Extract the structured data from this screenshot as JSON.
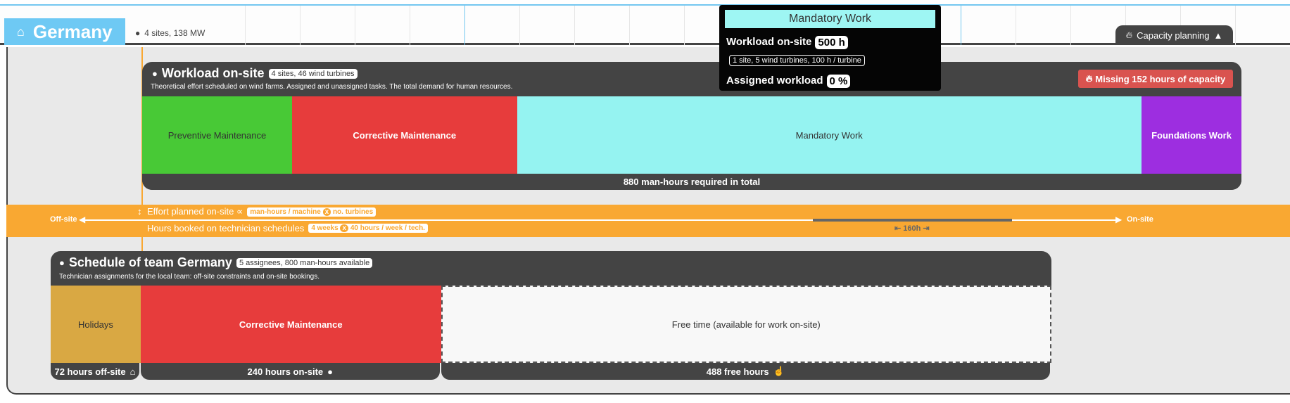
{
  "header": {
    "country": "Germany",
    "sites_summary": "4 sites, 138 MW",
    "capacity_tab": "Capacity planning"
  },
  "workload": {
    "title": "Workload on-site",
    "badge": "4 sites, 46 wind turbines",
    "subtitle": "Theoretical effort scheduled on wind farms. Assigned and unassigned tasks. The total demand for human resources.",
    "alert": "Missing 152 hours of capacity",
    "segments": [
      {
        "label": "Preventive Maintenance",
        "hours": 120,
        "color": "#48c936"
      },
      {
        "label": "Corrective Maintenance",
        "hours": 180,
        "color": "#e73c3c"
      },
      {
        "label": "Mandatory Work",
        "hours": 500,
        "color": "#95f3f1"
      },
      {
        "label": "Foundations Work",
        "hours": 80,
        "color": "#9d2ee0"
      }
    ],
    "total": "880 man-hours required in total"
  },
  "band": {
    "offsite": "Off-site",
    "onsite": "On-site",
    "effort_label": "Effort planned on-site ∝",
    "effort_a": "man-hours / machine",
    "effort_b": "no. turbines",
    "hours_label": "Hours booked on technician schedules",
    "hours_a": "4 weeks",
    "hours_b": "40 hours / week / tech.",
    "times": "x",
    "gap": "⇤ 160h ⇥"
  },
  "schedule": {
    "title": "Schedule of team Germany",
    "badge": "5 assignees, 800 man-hours available",
    "subtitle": "Technician assignments for the local team: off-site constraints and on-site bookings.",
    "segments": [
      {
        "label": "Holidays",
        "hours": 72,
        "color": "#d9a843",
        "footer": "72 hours off-site"
      },
      {
        "label": "Corrective Maintenance",
        "hours": 240,
        "color": "#e73c3c",
        "footer": "240 hours on-site"
      },
      {
        "label": "Free time (available for work on-site)",
        "hours": 488,
        "color": "#f8f8f8",
        "footer": "488 free hours"
      }
    ]
  },
  "tooltip": {
    "title": "Mandatory Work",
    "workload_label": "Workload on-site",
    "workload_value": "500 h",
    "detail": "1 site, 5 wind turbines, 100 h / turbine",
    "assigned_label": "Assigned workload",
    "assigned_value": "0 %"
  }
}
